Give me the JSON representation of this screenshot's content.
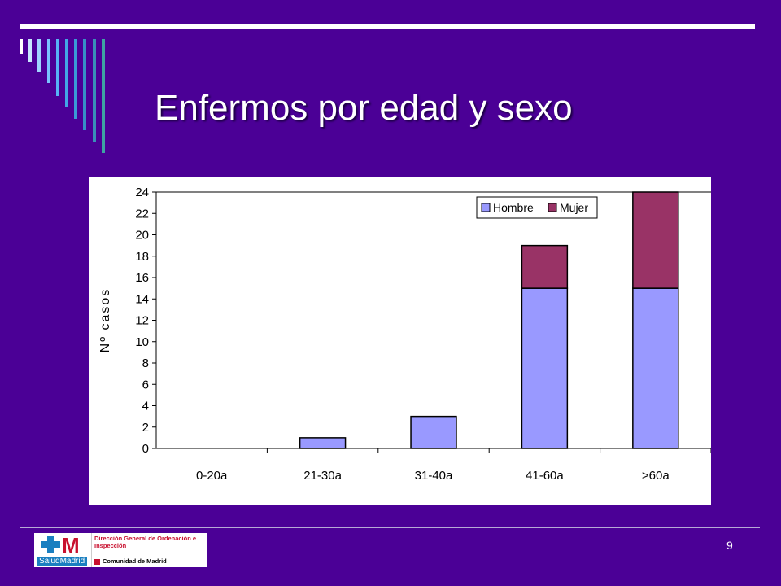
{
  "slide": {
    "title": "Enfermos por edad y sexo",
    "page_number": "9",
    "colors": {
      "background": "#4b0096",
      "accent_lines": "#ffffff"
    }
  },
  "logo": {
    "brand": "SaludMadrid",
    "mark": "M",
    "department": "Dirección General de Ordenación e\nInspección",
    "region": "Comunidad de Madrid"
  },
  "chart_data": {
    "type": "bar",
    "stacked": true,
    "categories": [
      "0-20a",
      "21-30a",
      "31-40a",
      "41-60a",
      ">60a"
    ],
    "series": [
      {
        "name": "Hombre",
        "values": [
          0,
          1,
          3,
          15,
          15
        ],
        "color": "#9999ff"
      },
      {
        "name": "Mujer",
        "values": [
          0,
          0,
          0,
          4,
          9
        ],
        "color": "#993366"
      }
    ],
    "ylabel": "Nº casos",
    "ylim": [
      0,
      24
    ],
    "yticks": [
      0,
      2,
      4,
      6,
      8,
      10,
      12,
      14,
      16,
      18,
      20,
      22,
      24
    ],
    "legend_position": "top-right",
    "grid": false
  }
}
